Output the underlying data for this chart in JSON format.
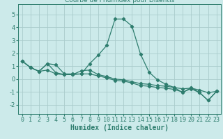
{
  "title": "Courbe de l'humidex pour Disentis",
  "xlabel": "Humidex (Indice chaleur)",
  "bg_color": "#cceaea",
  "grid_color": "#aacccc",
  "line_color": "#2e7d6e",
  "xlim": [
    -0.5,
    23.5
  ],
  "ylim": [
    -2.7,
    5.8
  ],
  "yticks": [
    -2,
    -1,
    0,
    1,
    2,
    3,
    4,
    5
  ],
  "xticks": [
    0,
    1,
    2,
    3,
    4,
    5,
    6,
    7,
    8,
    9,
    10,
    11,
    12,
    13,
    14,
    15,
    16,
    17,
    18,
    19,
    20,
    21,
    22,
    23
  ],
  "lines": [
    {
      "x": [
        0,
        1,
        2,
        3,
        4,
        5,
        6,
        7,
        8,
        9,
        10,
        11,
        12,
        13,
        14,
        15,
        16,
        17,
        18,
        19,
        20,
        21,
        22,
        23
      ],
      "y": [
        1.4,
        0.9,
        0.6,
        1.2,
        1.1,
        0.4,
        0.4,
        0.4,
        1.2,
        1.85,
        2.6,
        4.65,
        4.65,
        4.1,
        1.95,
        0.55,
        -0.05,
        -0.4,
        -0.65,
        -1.05,
        -0.65,
        -1.05,
        -1.65,
        -0.95
      ]
    },
    {
      "x": [
        0,
        1,
        2,
        3,
        4,
        5,
        6,
        7,
        8,
        9,
        10,
        11,
        12,
        13,
        14,
        15,
        16,
        17,
        18,
        19,
        20,
        21,
        22,
        23
      ],
      "y": [
        1.4,
        0.9,
        0.6,
        1.2,
        0.5,
        0.35,
        0.35,
        0.65,
        0.7,
        0.35,
        0.2,
        0.0,
        -0.05,
        -0.2,
        -0.35,
        -0.4,
        -0.5,
        -0.55,
        -0.65,
        -0.75,
        -0.7,
        -0.85,
        -1.05,
        -0.95
      ]
    },
    {
      "x": [
        0,
        1,
        2,
        3,
        4,
        5,
        6,
        7,
        8,
        9,
        10,
        11,
        12,
        13,
        14,
        15,
        16,
        17,
        18,
        19,
        20,
        21,
        22,
        23
      ],
      "y": [
        1.4,
        0.9,
        0.6,
        0.7,
        0.4,
        0.35,
        0.35,
        0.4,
        0.4,
        0.25,
        0.1,
        -0.1,
        -0.15,
        -0.3,
        -0.5,
        -0.55,
        -0.65,
        -0.7,
        -0.8,
        -1.0,
        -0.75,
        -1.05,
        -1.65,
        -0.95
      ]
    }
  ],
  "tick_fontsize": 6,
  "xlabel_fontsize": 7,
  "marker_size": 2.2,
  "linewidth": 0.9
}
